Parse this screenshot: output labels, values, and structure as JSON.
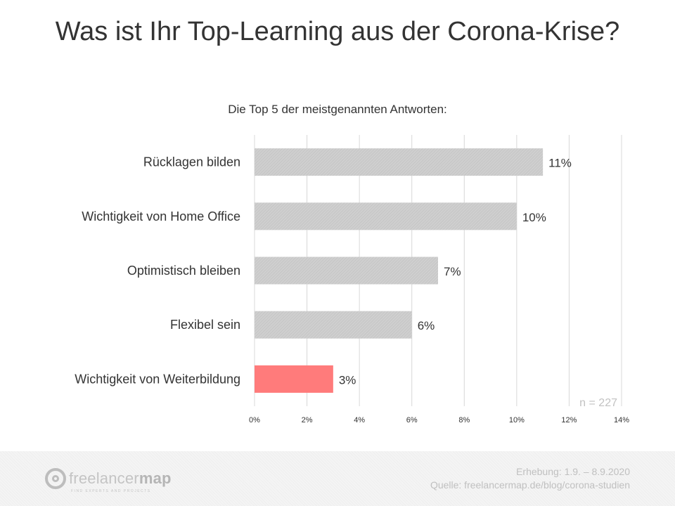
{
  "title": "Was ist Ihr Top-Learning aus der Corona-Krise?",
  "subtitle": "Die Top 5 der meistgenannten Antworten:",
  "chart_data": {
    "type": "bar",
    "orientation": "horizontal",
    "categories": [
      "Rücklagen bilden",
      "Wichtigkeit von Home Office",
      "Optimistisch bleiben",
      "Flexibel sein",
      "Wichtigkeit von Weiterbildung"
    ],
    "values": [
      11,
      10,
      7,
      6,
      3
    ],
    "value_labels": [
      "11%",
      "10%",
      "7%",
      "6%",
      "3%"
    ],
    "xlim": [
      0,
      14
    ],
    "x_ticks": [
      0,
      2,
      4,
      6,
      8,
      10,
      12,
      14
    ],
    "x_tick_labels": [
      "0%",
      "2%",
      "4%",
      "6%",
      "8%",
      "10%",
      "12%",
      "14%"
    ],
    "grid": true,
    "colors": {
      "default_bar": "#d0d0d0",
      "highlight_bar": "#ff7b7b",
      "grid": "#d8d8d8"
    },
    "highlight_index": 4,
    "annotation": "n = 227"
  },
  "footer": {
    "logo_text_light": "freelancer",
    "logo_text_bold": "map",
    "logo_tagline": "find experts and projects",
    "survey_period": "Erhebung: 1.9. – 8.9.2020",
    "source": "Quelle: freelancermap.de/blog/corona-studien"
  }
}
